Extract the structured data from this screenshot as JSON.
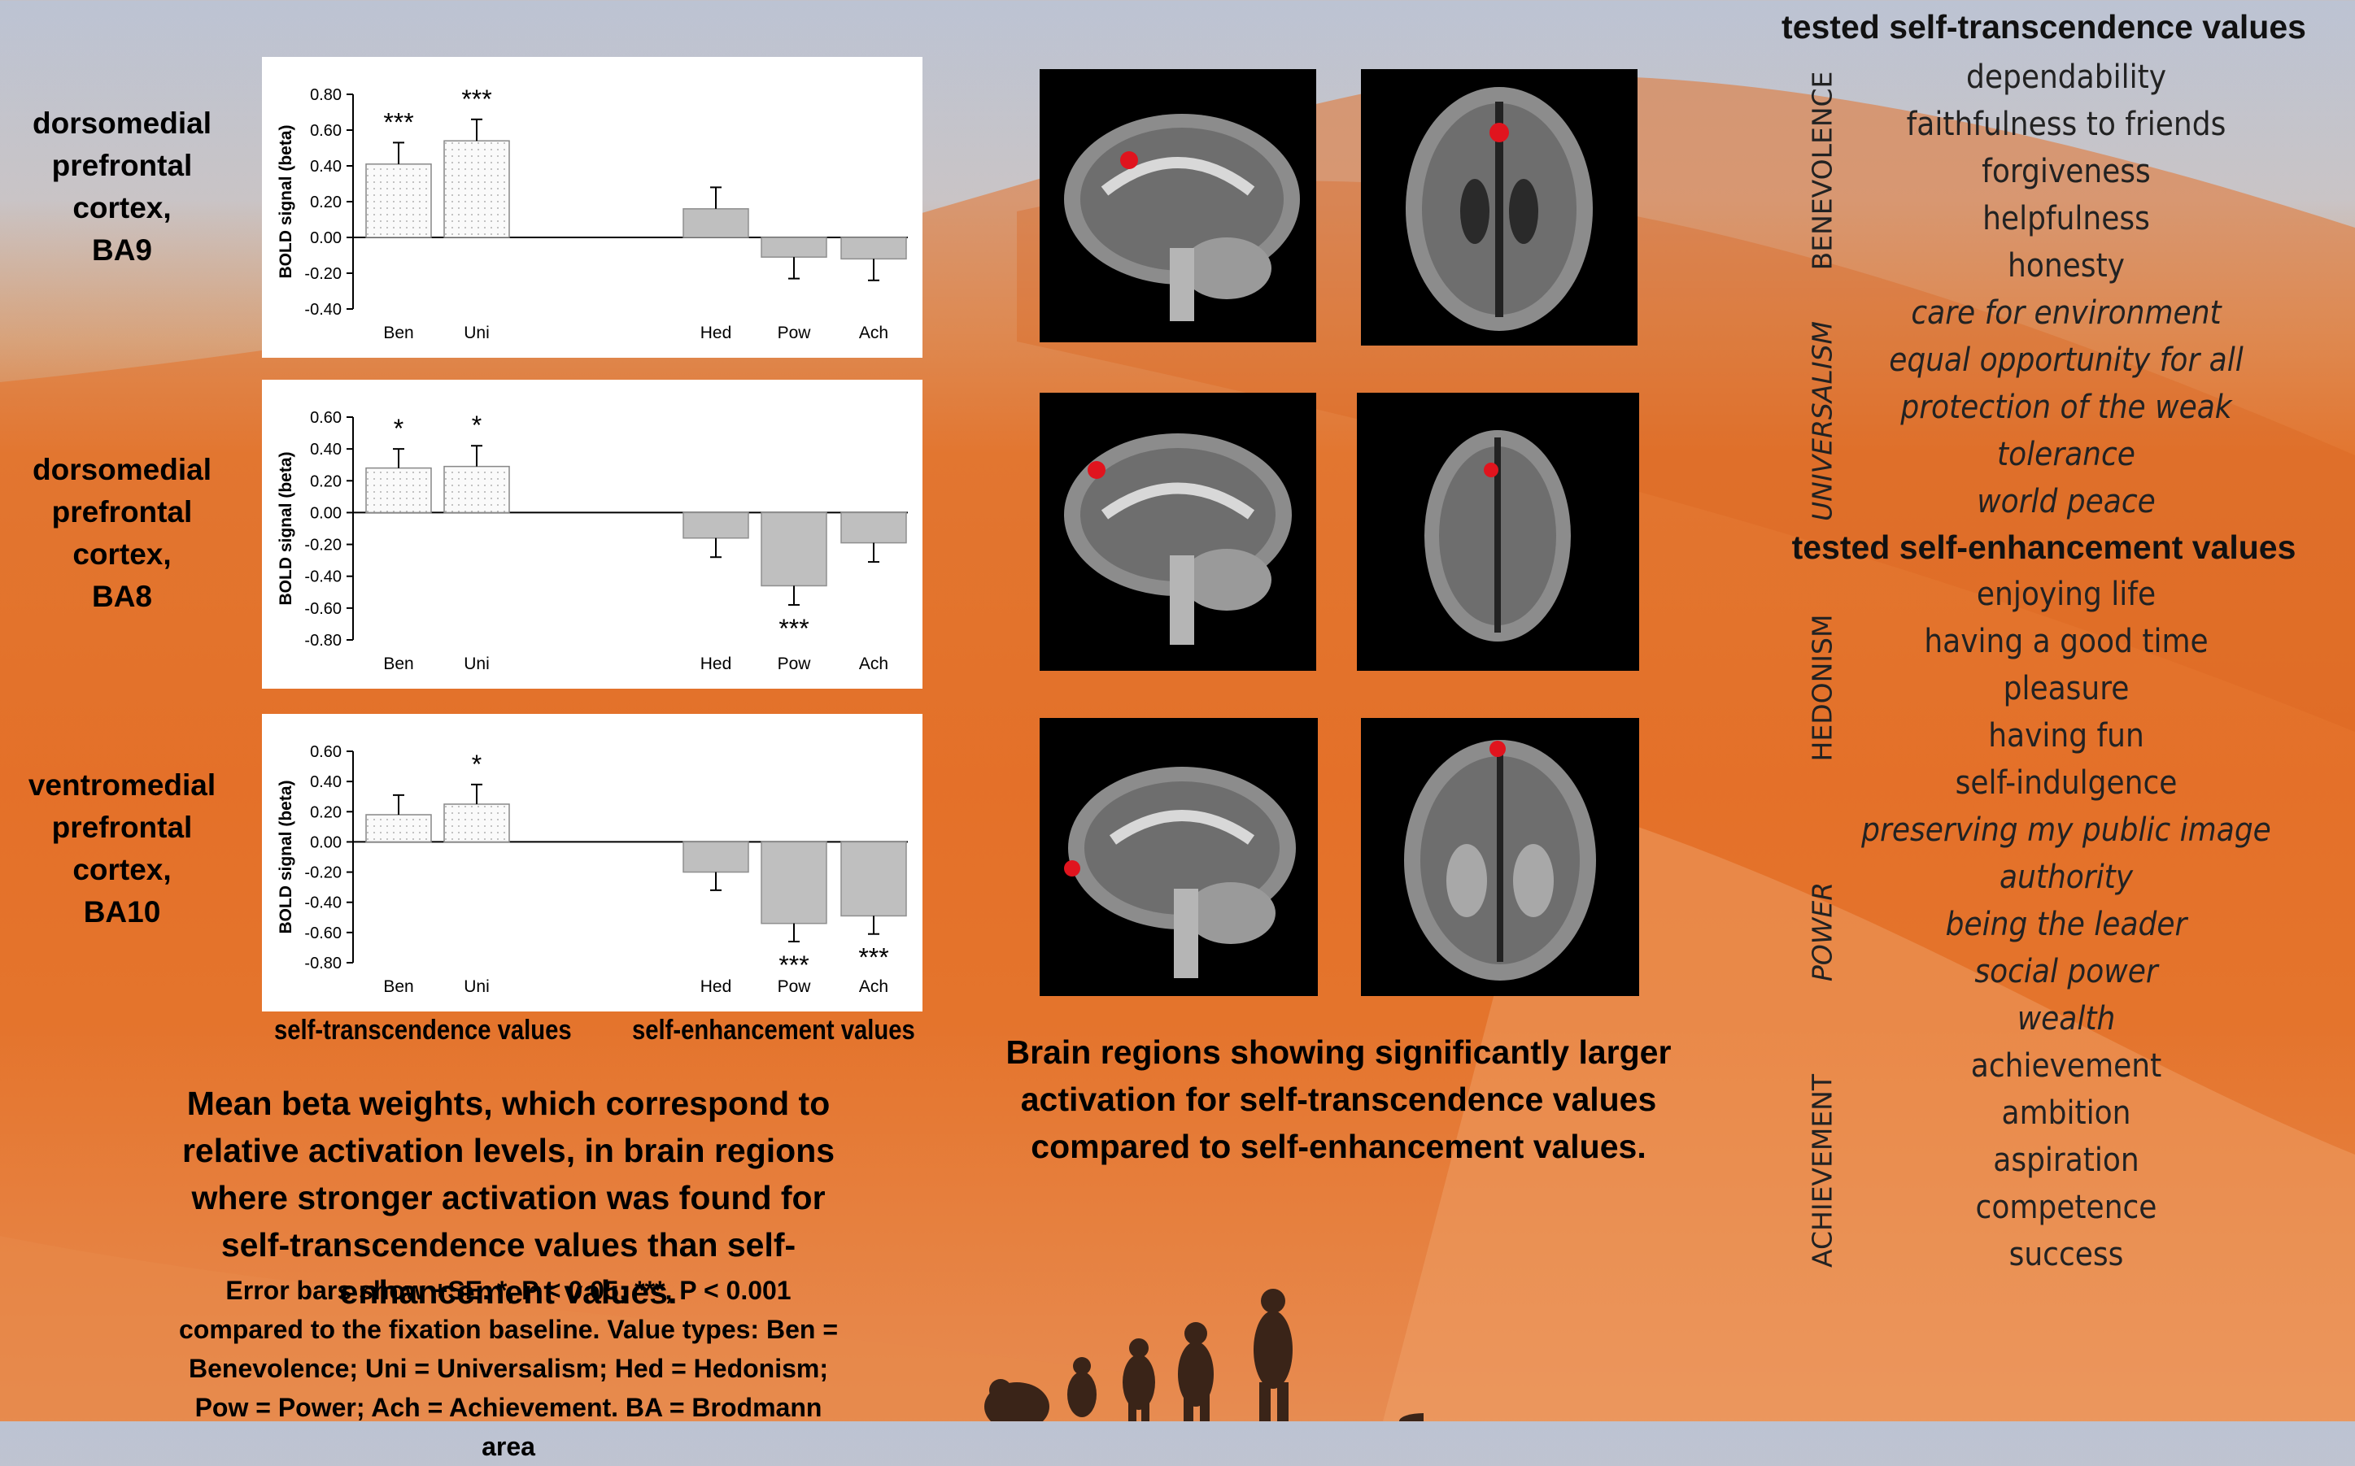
{
  "regions": [
    {
      "lines": [
        "dorsomedial",
        "prefrontal",
        "cortex,",
        "BA9"
      ]
    },
    {
      "lines": [
        "dorsomedial",
        "prefrontal",
        "cortex,",
        "BA8"
      ]
    },
    {
      "lines": [
        "ventromedial",
        "prefrontal",
        "cortex,",
        "BA10"
      ]
    }
  ],
  "chart_data": [
    {
      "type": "bar",
      "categories": [
        "Ben",
        "Uni",
        "Hed",
        "Pow",
        "Ach"
      ],
      "values": [
        0.41,
        0.54,
        0.16,
        -0.11,
        -0.12
      ],
      "errors": [
        0.12,
        0.12,
        0.12,
        0.12,
        0.12
      ],
      "significance": [
        "***",
        "***",
        "",
        "",
        ""
      ],
      "ylabel": "BOLD signal (beta)",
      "ylim": [
        -0.4,
        0.8
      ],
      "yticks": [
        "0.80",
        "0.60",
        "0.40",
        "0.20",
        "0.00",
        "-0.20",
        "-0.40"
      ],
      "grid": false
    },
    {
      "type": "bar",
      "categories": [
        "Ben",
        "Uni",
        "Hed",
        "Pow",
        "Ach"
      ],
      "values": [
        0.28,
        0.29,
        -0.16,
        -0.46,
        -0.19
      ],
      "errors": [
        0.12,
        0.13,
        0.12,
        0.12,
        0.12
      ],
      "significance": [
        "*",
        "*",
        "",
        "***",
        ""
      ],
      "ylabel": "BOLD signal (beta)",
      "ylim": [
        -0.8,
        0.6
      ],
      "yticks": [
        "0.60",
        "0.40",
        "0.20",
        "0.00",
        "-0.20",
        "-0.40",
        "-0.60",
        "-0.80"
      ],
      "grid": false
    },
    {
      "type": "bar",
      "categories": [
        "Ben",
        "Uni",
        "Hed",
        "Pow",
        "Ach"
      ],
      "values": [
        0.18,
        0.25,
        -0.2,
        -0.54,
        -0.49
      ],
      "errors": [
        0.13,
        0.13,
        0.12,
        0.12,
        0.12
      ],
      "significance": [
        "",
        "*",
        "",
        "***",
        "***"
      ],
      "ylabel": "BOLD signal (beta)",
      "ylim": [
        -0.8,
        0.6
      ],
      "yticks": [
        "0.60",
        "0.40",
        "0.20",
        "0.00",
        "-0.20",
        "-0.40",
        "-0.60",
        "-0.80"
      ],
      "grid": false
    }
  ],
  "colors": {
    "transcendence_bar": "#fafafa",
    "enhancement_bar": "#bfbfbf",
    "activation": "#e0141e"
  },
  "group_labels": {
    "transcendence": "self-transcendence values",
    "enhancement": "self-enhancement values"
  },
  "caption_main": "Mean beta weights, which correspond to relative activation levels, in brain regions where stronger activation was found for self-transcendence values than self-enhancement values.",
  "caption_note": "Error bars show +SE. *, P < 0.05; ***, P < 0.001 compared to the fixation baseline. Value types: Ben = Benevolence; Uni = Universalism; Hed = Hedonism; Pow = Power; Ach = Achievement. BA = Brodmann area",
  "caption_brain": "Brain regions showing significantly larger activation for self-transcendence values compared to self-enhancement values.",
  "values_panel": {
    "transcendence_title": "tested self-transcendence values",
    "enhancement_title": "tested self-enhancement values",
    "categories": [
      {
        "name": "BENEVOLENCE",
        "italic": false,
        "items": [
          "dependability",
          "faithfulness to friends",
          "forgiveness",
          "helpfulness",
          "honesty"
        ]
      },
      {
        "name": "UNIVERSALISM",
        "italic": true,
        "items": [
          "care for environment",
          "equal opportunity for all",
          "protection of the weak",
          "tolerance",
          "world peace"
        ]
      },
      {
        "name": "HEDONISM",
        "italic": false,
        "items": [
          "enjoying life",
          "having a good time",
          "pleasure",
          "having fun",
          "self-indulgence"
        ]
      },
      {
        "name": "POWER",
        "italic": true,
        "items": [
          "preserving my public image",
          "authority",
          "being the leader",
          "social power",
          "wealth"
        ]
      },
      {
        "name": "ACHIEVEMENT",
        "italic": false,
        "items": [
          "achievement",
          "ambition",
          "aspiration",
          "competence",
          "success"
        ]
      }
    ]
  }
}
